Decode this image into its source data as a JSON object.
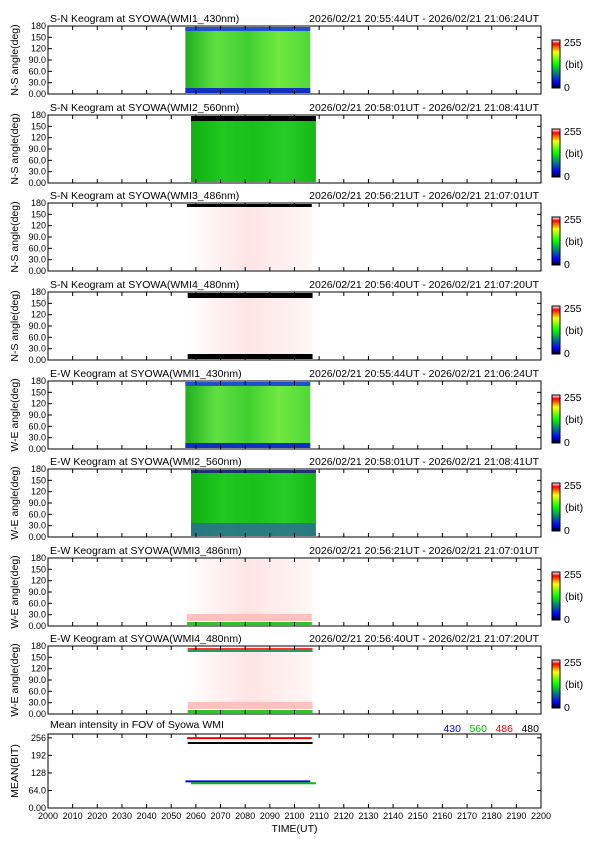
{
  "panels": [
    {
      "title": "S-N Keogram at SYOWA(WMI1_430nm)",
      "time_range": "2026/02/21  20:55:44UT  - 2026/02/21  21:06:24UT",
      "ylabel": "N-S angle(deg)",
      "data_start": 2055.73,
      "data_end": 2106.4,
      "palette": "green",
      "top_band": "blue",
      "bottom_band": "blue",
      "bottom_band_color": "#1030c0"
    },
    {
      "title": "S-N Keogram at SYOWA(WMI2_560nm)",
      "time_range": "2026/02/21  20:58:01UT  - 2026/02/21  21:08:41UT",
      "ylabel": "N-S angle(deg)",
      "data_start": 2058.02,
      "data_end": 2108.68,
      "palette": "green-dark",
      "top_band": "black",
      "bottom_band": "none"
    },
    {
      "title": "S-N Keogram at SYOWA(WMI3_486nm)",
      "time_range": "2026/02/21  20:56:21UT  - 2026/02/21  21:07:01UT",
      "ylabel": "N-S angle(deg)",
      "data_start": 2056.35,
      "data_end": 2107.02,
      "palette": "pink",
      "top_band": "black-thin",
      "bottom_band": "none"
    },
    {
      "title": "S-N Keogram at SYOWA(WMI4_480nm)",
      "time_range": "2026/02/21  20:56:40UT  - 2026/02/21  21:07:20UT",
      "ylabel": "N-S angle(deg)",
      "data_start": 2056.67,
      "data_end": 2107.33,
      "palette": "pink",
      "top_band": "black",
      "bottom_band": "black"
    },
    {
      "title": "E-W Keogram at SYOWA(WMI1_430nm)",
      "time_range": "2026/02/21  20:55:44UT  - 2026/02/21  21:06:24UT",
      "ylabel": "W-E angle(deg)",
      "data_start": 2055.73,
      "data_end": 2106.4,
      "palette": "green",
      "top_band": "blue",
      "bottom_band": "blue",
      "bottom_band_color": "#1030c0"
    },
    {
      "title": "E-W Keogram at SYOWA(WMI2_560nm)",
      "time_range": "2026/02/21  20:58:01UT  - 2026/02/21  21:08:41UT",
      "ylabel": "W-E angle(deg)",
      "data_start": 2058.02,
      "data_end": 2108.68,
      "palette": "green-dark",
      "top_band": "darkblue",
      "bottom_band": "blue-grad",
      "bottom_band_color": "#2a6a9a"
    },
    {
      "title": "E-W Keogram at SYOWA(WMI3_486nm)",
      "time_range": "2026/02/21  20:56:21UT  - 2026/02/21  21:07:01UT",
      "ylabel": "W-E angle(deg)",
      "data_start": 2056.35,
      "data_end": 2107.02,
      "palette": "pink",
      "top_band": "none",
      "bottom_band": "green",
      "bottom_band_color": "#30c030"
    },
    {
      "title": "E-W Keogram at SYOWA(WMI4_480nm)",
      "time_range": "2026/02/21  20:56:40UT  - 2026/02/21  21:07:20UT",
      "ylabel": "W-E angle(deg)",
      "data_start": 2056.67,
      "data_end": 2107.33,
      "palette": "pink",
      "top_band": "red-green",
      "bottom_band": "green",
      "bottom_band_color": "#30c030"
    }
  ],
  "keogram_yticks": [
    "0.00",
    "30.0",
    "60.0",
    "90.0",
    "120",
    "150",
    "180"
  ],
  "keogram_ylim": [
    0,
    180
  ],
  "colorbar": {
    "max_label": "255",
    "unit_label": "(bit)",
    "min_label": "0"
  },
  "palette_colors": {
    "black": "#000000",
    "blue": "#0000ff",
    "green": "#00ff00",
    "yellow": "#ffff00",
    "red": "#ff0000",
    "pink": "#ffd8d8",
    "white": "#ffffff"
  },
  "chart_data": {
    "type": "line",
    "title": "Mean intensity in FOV of Syowa WMI",
    "xlabel": "TIME(UT)",
    "ylabel": "MEAN(BIT)",
    "xlim": [
      2000,
      2200
    ],
    "ylim": [
      0,
      270
    ],
    "x_ticks": [
      "2000",
      "2010",
      "2020",
      "2030",
      "2040",
      "2050",
      "2060",
      "2070",
      "2080",
      "2090",
      "2100",
      "2110",
      "2120",
      "2130",
      "2140",
      "2150",
      "2160",
      "2170",
      "2180",
      "2190",
      "2200"
    ],
    "y_ticks": [
      "0.00",
      "64.0",
      "128",
      "192",
      "256"
    ],
    "grid": false,
    "legend_position": "top-right",
    "series": [
      {
        "name": "430",
        "color": "#0000ff",
        "x": [
          2055.73,
          2106.4
        ],
        "y": [
          97,
          97
        ]
      },
      {
        "name": "560",
        "color": "#00c000",
        "x": [
          2058.02,
          2108.68
        ],
        "y": [
          90,
          90
        ]
      },
      {
        "name": "486",
        "color": "#ff0000",
        "x": [
          2056.35,
          2107.02
        ],
        "y": [
          255,
          255
        ]
      },
      {
        "name": "480",
        "color": "#000000",
        "x": [
          2056.67,
          2107.33
        ],
        "y": [
          237,
          237
        ]
      }
    ]
  }
}
